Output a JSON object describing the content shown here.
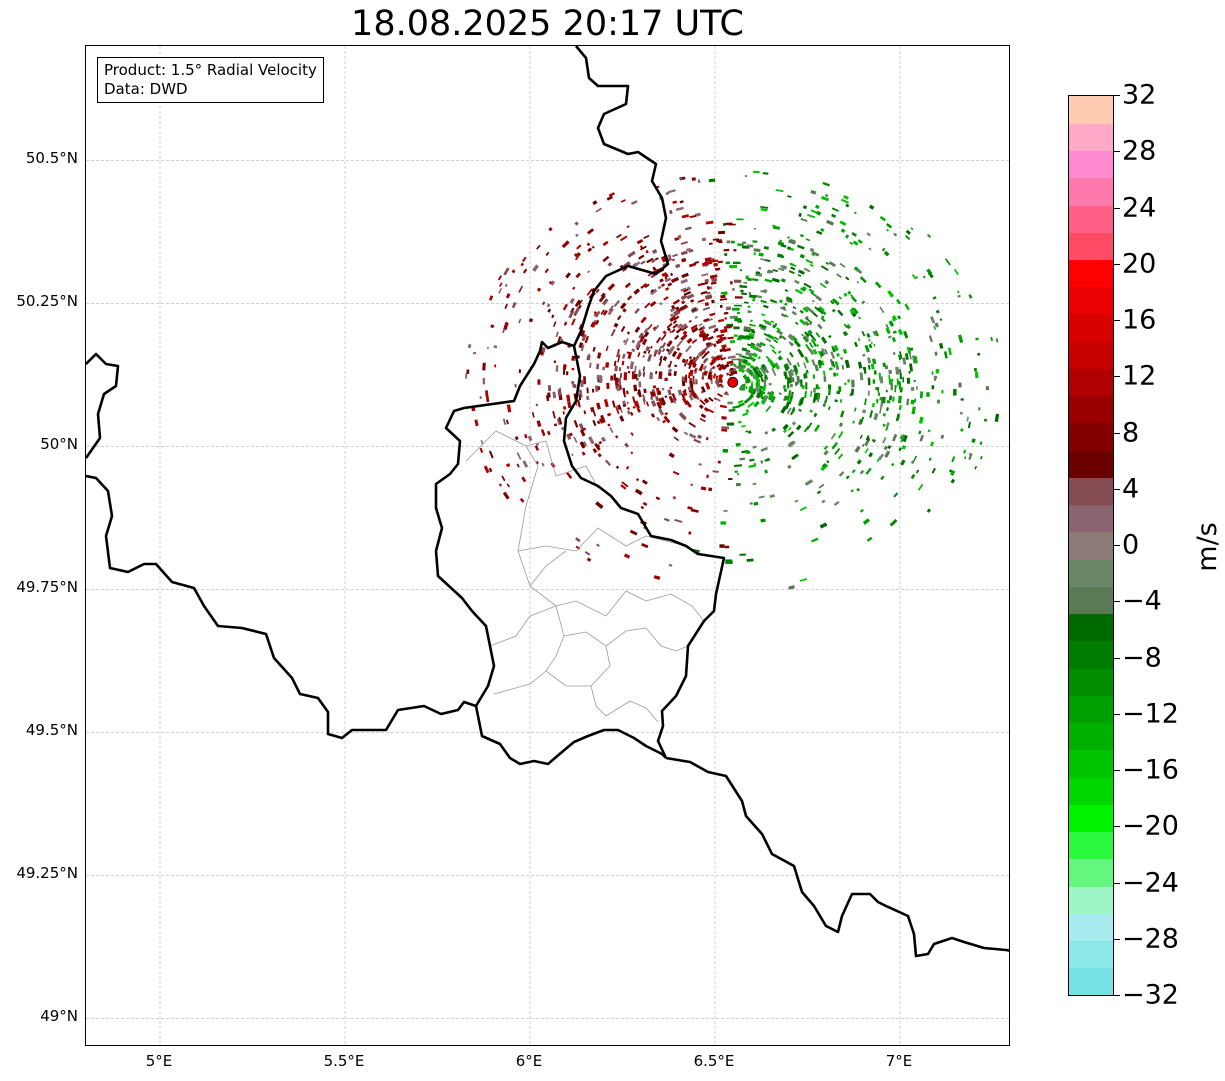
{
  "title": "18.08.2025 20:17 UTC",
  "info": {
    "product_label": "Product: 1.5° Radial Velocity",
    "data_label": "Data: DWD"
  },
  "map": {
    "lon_ticks": [
      "5°E",
      "5.5°E",
      "6°E",
      "6.5°E",
      "7°E"
    ],
    "lat_ticks": [
      "50.5°N",
      "50.25°N",
      "50°N",
      "49.75°N",
      "49.5°N",
      "49.25°N",
      "49°N"
    ],
    "extent": {
      "lon_min": 4.8,
      "lon_max": 7.3,
      "lat_min": 48.95,
      "lat_max": 50.7
    },
    "gridlines": true,
    "radar_site": {
      "lon": 6.548,
      "lat": 50.112,
      "color": "#e8000b"
    },
    "border_color": "#000000",
    "admin_color": "#9a9a9a"
  },
  "colorbar": {
    "unit": "m/s",
    "vmin": -32,
    "vmax": 32,
    "tick_labels": [
      "32",
      "28",
      "24",
      "20",
      "16",
      "12",
      "8",
      "4",
      "0",
      "−4",
      "−8",
      "−12",
      "−16",
      "−20",
      "−24",
      "−28",
      "−32"
    ],
    "colors": [
      "#76e2e6",
      "#8de8ea",
      "#a8ebee",
      "#9df5c8",
      "#64f77f",
      "#2bf83e",
      "#00f400",
      "#00d700",
      "#00c400",
      "#00b000",
      "#009f00",
      "#008d00",
      "#007c00",
      "#006900",
      "#5a7a55",
      "#698667",
      "#8b7a76",
      "#8a646e",
      "#844c52",
      "#6a0000",
      "#820000",
      "#9a0000",
      "#b10000",
      "#c70000",
      "#d80000",
      "#ea0000",
      "#ff0000",
      "#ff4b66",
      "#ff6088",
      "#ff7aac",
      "#ff8ad0",
      "#ffa8c8",
      "#ffccb2"
    ]
  }
}
